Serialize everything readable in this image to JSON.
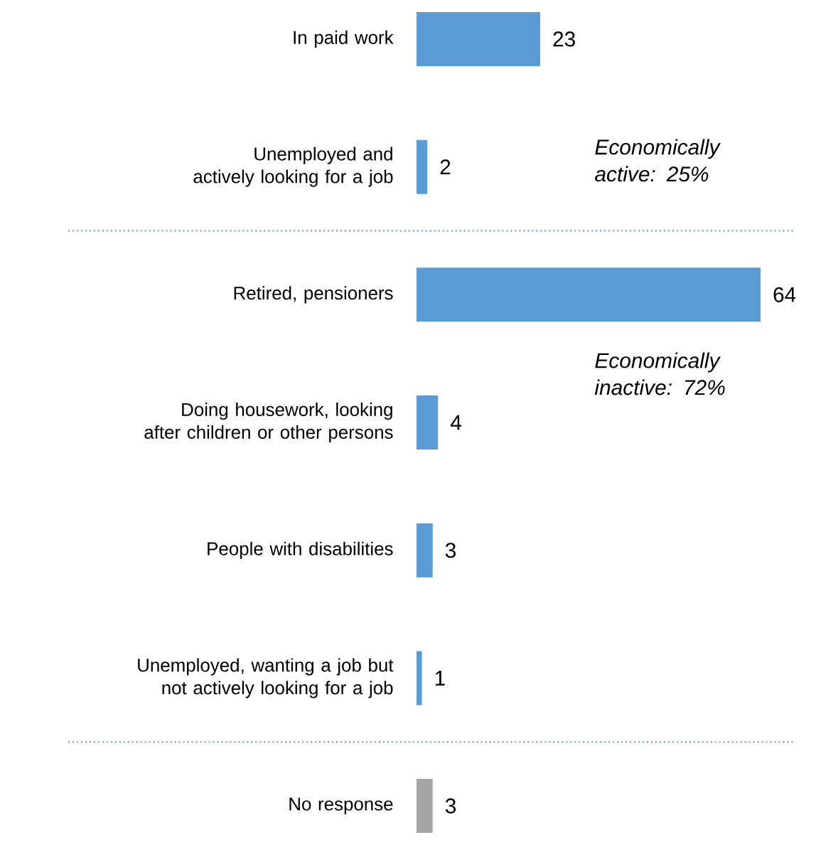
{
  "chart_data": {
    "type": "bar",
    "orientation": "horizontal",
    "categories": [
      "In paid work",
      "Unemployed and actively looking for a job",
      "Retired, pensioners",
      "Doing housework, looking after children or other persons",
      "People with disabilities",
      "Unemployed, wanting a job but not actively looking for a job",
      "No response"
    ],
    "values": [
      23,
      2,
      64,
      4,
      3,
      1,
      3
    ],
    "colors": [
      "#5b9bd5",
      "#5b9bd5",
      "#5b9bd5",
      "#5b9bd5",
      "#5b9bd5",
      "#5b9bd5",
      "#a5a5a5"
    ],
    "data_labels": true,
    "annotations": [
      "Economically active: 25%",
      "Economically inactive: 72%"
    ]
  }
}
